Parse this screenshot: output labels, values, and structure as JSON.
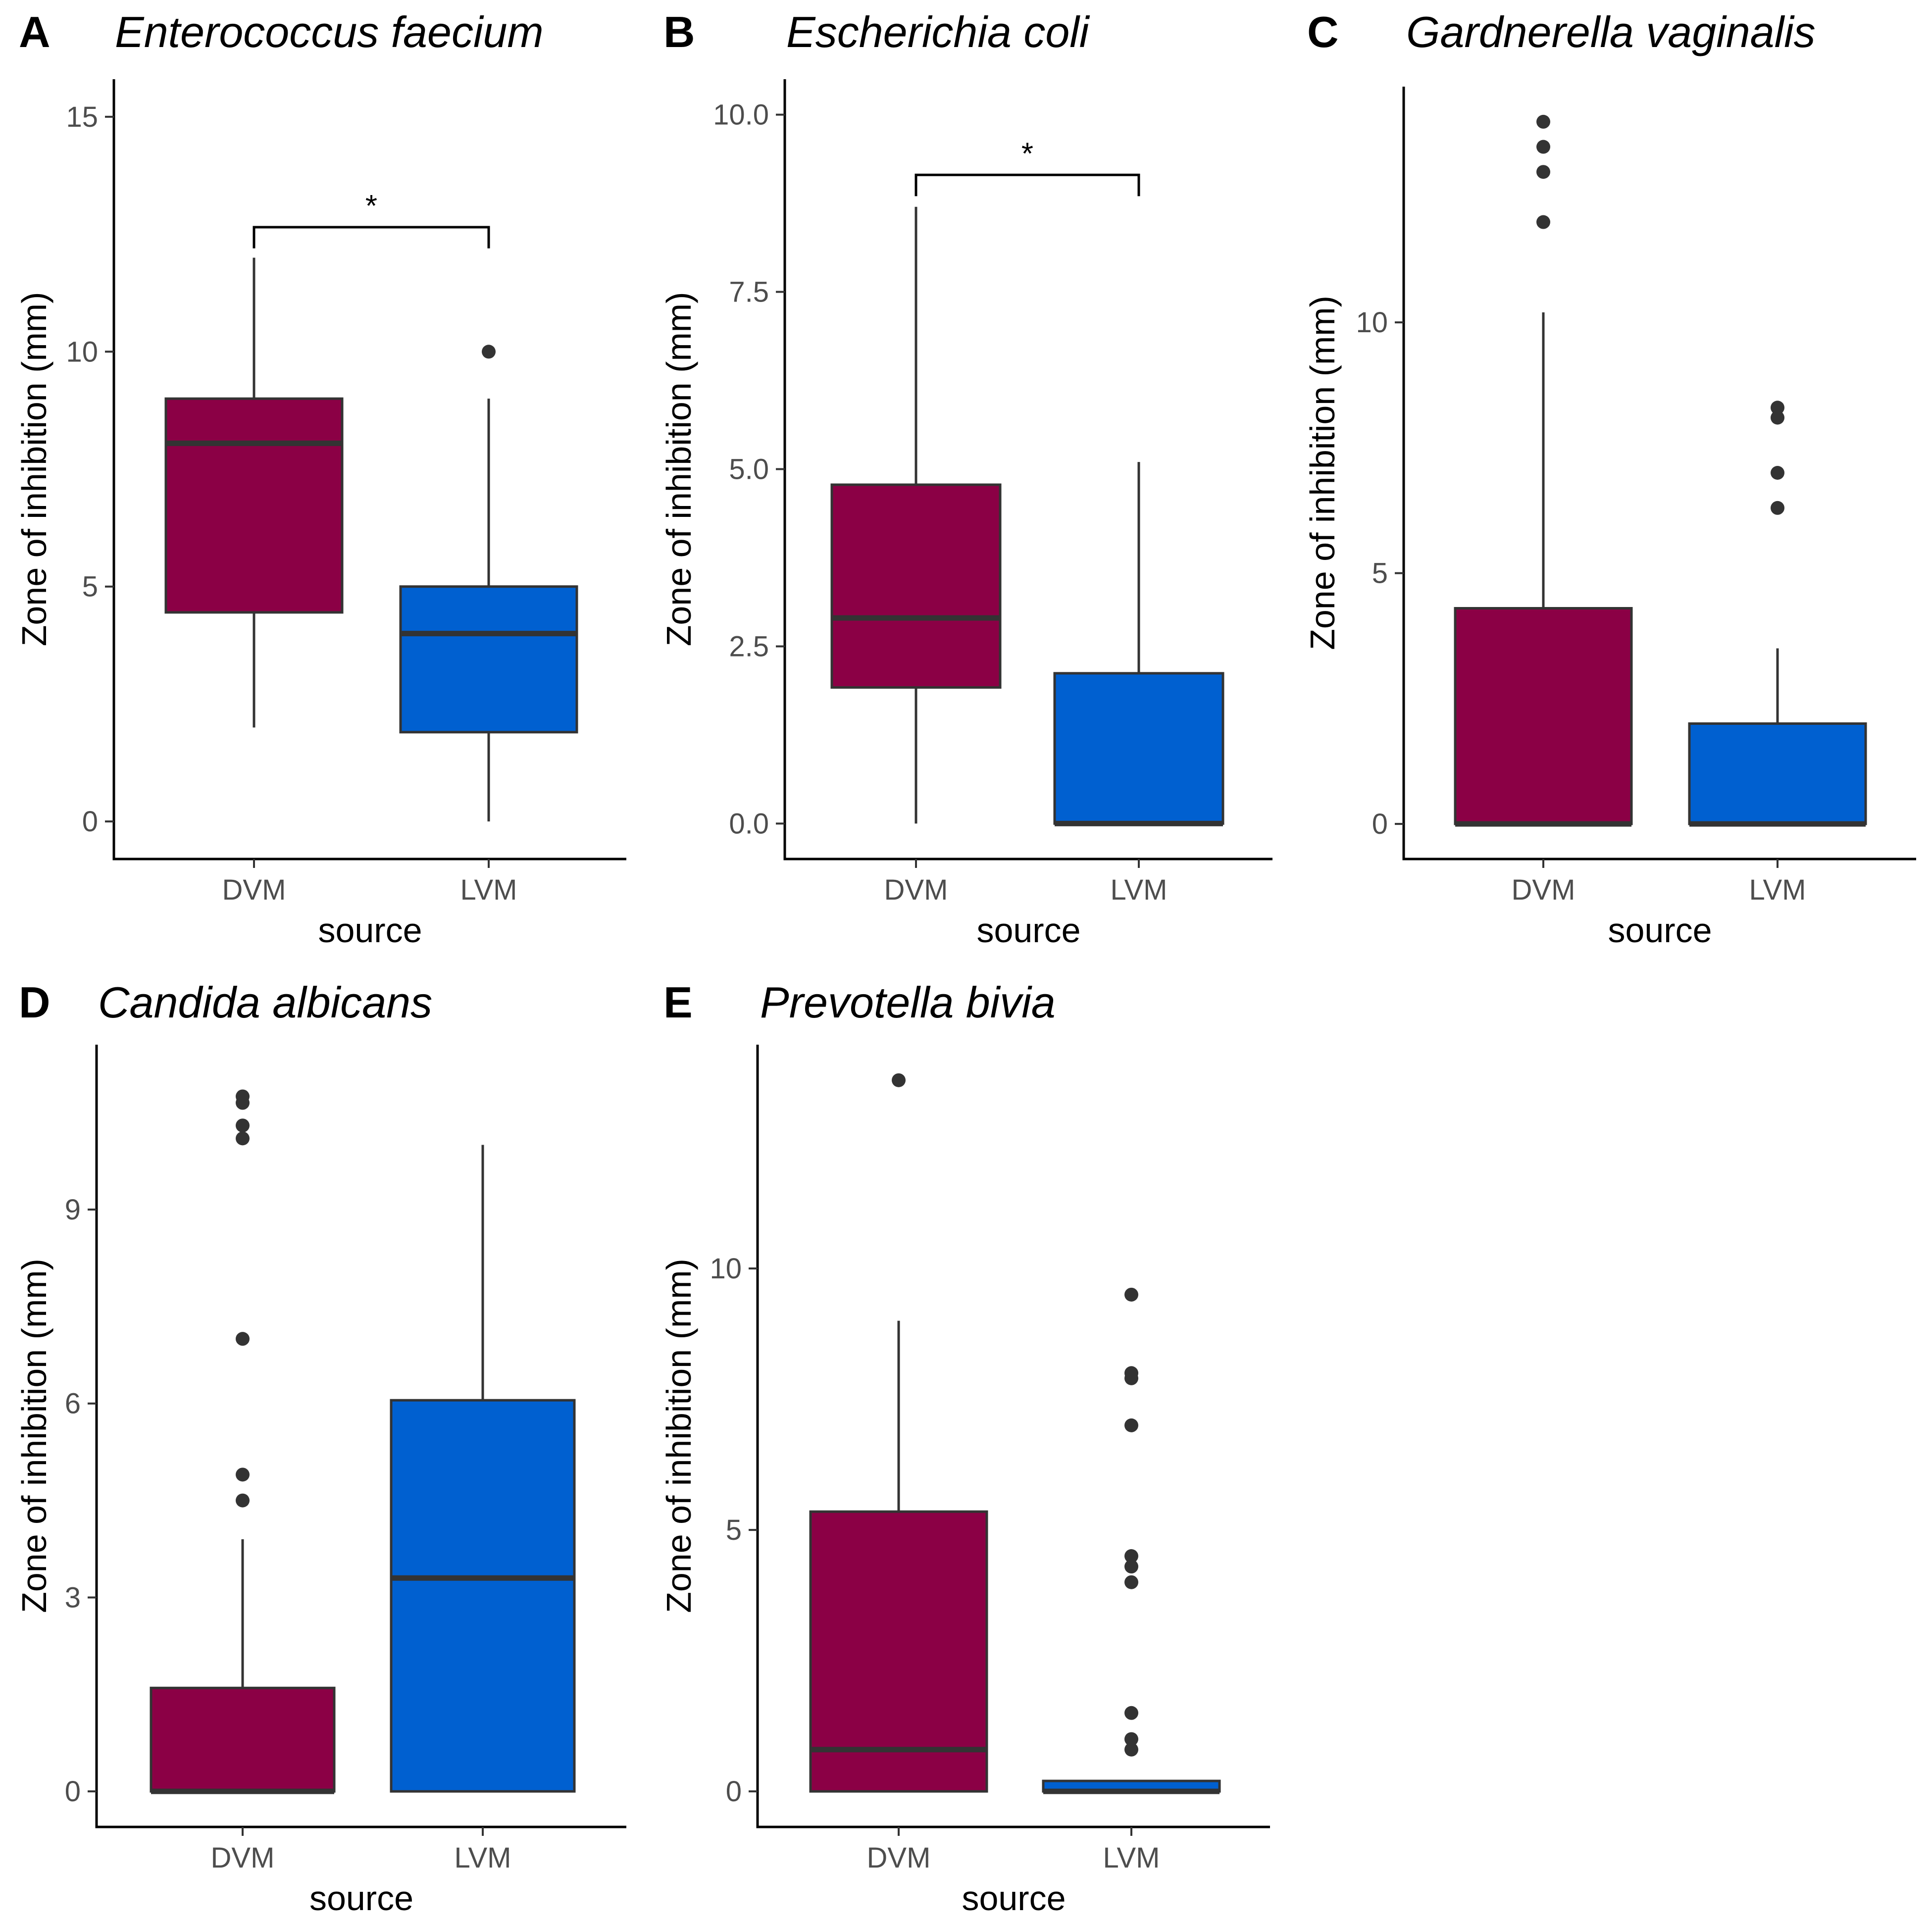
{
  "colors": {
    "DVM": "#8b0045",
    "LVM": "#0060d0",
    "outline": "#333333",
    "axis": "#000000",
    "tick_text": "#4d4d4d"
  },
  "chart_data": [
    {
      "type": "box",
      "panel": "A",
      "title": "Enterococcus faecium",
      "xlabel": "source",
      "ylabel": "Zone of inhibition (mm)",
      "categories": [
        "DVM",
        "LVM"
      ],
      "ylim": [
        -0.8,
        15.8
      ],
      "yticks": [
        0,
        5,
        10,
        15
      ],
      "ytick_labels": [
        "0",
        "5",
        "10",
        "15"
      ],
      "boxes": [
        {
          "category": "DVM",
          "whisker_low": 2,
          "q1": 4.45,
          "median": 8.05,
          "q3": 9,
          "whisker_high": 12,
          "outliers": []
        },
        {
          "category": "LVM",
          "whisker_low": 0,
          "q1": 1.9,
          "median": 4,
          "q3": 5,
          "whisker_high": 9,
          "outliers": [
            10
          ]
        }
      ],
      "significance": {
        "label": "*",
        "from": "DVM",
        "to": "LVM",
        "y_bar": 12.65,
        "y_tip": 12.2
      }
    },
    {
      "type": "box",
      "panel": "B",
      "title": "Escherichia coli",
      "xlabel": "source",
      "ylabel": "Zone of inhibition (mm)",
      "categories": [
        "DVM",
        "LVM"
      ],
      "ylim": [
        -0.5,
        10.5
      ],
      "yticks": [
        0,
        2.5,
        5,
        7.5,
        10
      ],
      "ytick_labels": [
        "0.0",
        "2.5",
        "5.0",
        "7.5",
        "10.0"
      ],
      "boxes": [
        {
          "category": "DVM",
          "whisker_low": 0,
          "q1": 1.92,
          "median": 2.9,
          "q3": 4.78,
          "whisker_high": 8.7,
          "outliers": []
        },
        {
          "category": "LVM",
          "whisker_low": 0,
          "q1": 0,
          "median": 0,
          "q3": 2.12,
          "whisker_high": 5.1,
          "outliers": []
        }
      ],
      "significance": {
        "label": "*",
        "from": "DVM",
        "to": "LVM",
        "y_bar": 9.15,
        "y_tip": 8.85
      }
    },
    {
      "type": "box",
      "panel": "C",
      "title": "Gardnerella vaginalis",
      "xlabel": "source",
      "ylabel": "Zone of inhibition (mm)",
      "categories": [
        "DVM",
        "LVM"
      ],
      "ylim": [
        -0.7,
        14.7
      ],
      "yticks": [
        0,
        5,
        10
      ],
      "ytick_labels": [
        "0",
        "5",
        "10"
      ],
      "boxes": [
        {
          "category": "DVM",
          "whisker_low": 0,
          "q1": 0,
          "median": 0,
          "q3": 4.3,
          "whisker_high": 10.2,
          "outliers": [
            12,
            13,
            13.5,
            14
          ]
        },
        {
          "category": "LVM",
          "whisker_low": 0,
          "q1": 0,
          "median": 0,
          "q3": 2,
          "whisker_high": 3.5,
          "outliers": [
            6.3,
            7,
            8.1,
            8.3
          ]
        }
      ]
    },
    {
      "type": "box",
      "panel": "D",
      "title": "Candida albicans",
      "xlabel": "source",
      "ylabel": "Zone of inhibition (mm)",
      "categories": [
        "DVM",
        "LVM"
      ],
      "ylim": [
        -0.55,
        11.55
      ],
      "yticks": [
        0,
        3,
        6,
        9
      ],
      "ytick_labels": [
        "0",
        "3",
        "6",
        "9"
      ],
      "boxes": [
        {
          "category": "DVM",
          "whisker_low": 0,
          "q1": 0,
          "median": 0,
          "q3": 1.6,
          "whisker_high": 3.9,
          "outliers": [
            4.5,
            4.9,
            7,
            10.1,
            10.3,
            10.65,
            10.75
          ]
        },
        {
          "category": "LVM",
          "whisker_low": 0,
          "q1": 0,
          "median": 3.3,
          "q3": 6.05,
          "whisker_high": 10,
          "outliers": []
        }
      ]
    },
    {
      "type": "box",
      "panel": "E",
      "title": "Prevotella bivia",
      "xlabel": "source",
      "ylabel": "Zone of inhibition (mm)",
      "categories": [
        "DVM",
        "LVM"
      ],
      "ylim": [
        -0.68,
        14.28
      ],
      "yticks": [
        0,
        5,
        10
      ],
      "ytick_labels": [
        "0",
        "5",
        "10"
      ],
      "boxes": [
        {
          "category": "DVM",
          "whisker_low": 0,
          "q1": 0,
          "median": 0.8,
          "q3": 5.35,
          "whisker_high": 9,
          "outliers": [
            13.6
          ]
        },
        {
          "category": "LVM",
          "whisker_low": 0,
          "q1": 0,
          "median": 0,
          "q3": 0.2,
          "whisker_high": 0.2,
          "outliers": [
            0.8,
            1,
            1.5,
            4,
            4.3,
            4.5,
            7,
            7.9,
            8,
            9.5
          ]
        }
      ]
    }
  ]
}
